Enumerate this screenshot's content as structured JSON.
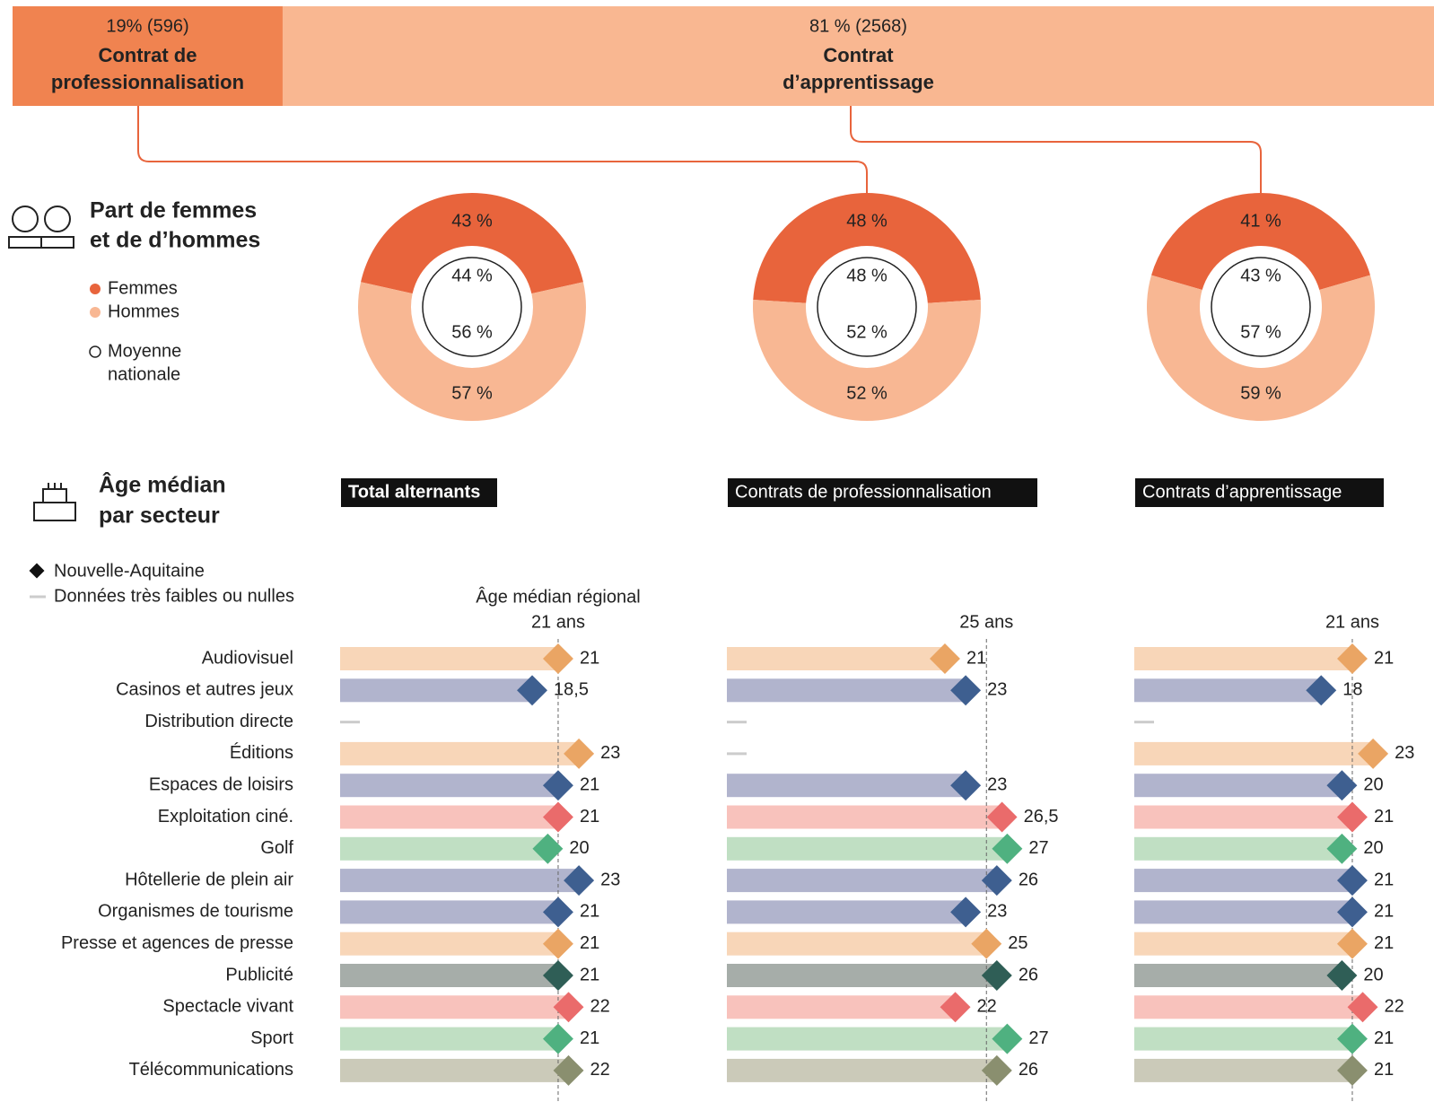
{
  "header": {
    "segments": [
      {
        "share": 19,
        "share_label": "19% (596)",
        "name_lines": [
          "Contrat de",
          "professionnalisation"
        ]
      },
      {
        "share": 81,
        "share_label": "81 % (2568)",
        "name_lines": [
          "Contrat",
          "d’apprentissage"
        ]
      }
    ]
  },
  "gender": {
    "title_lines": [
      "Part de femmes",
      "et de d’hommes"
    ],
    "legend": {
      "women": "Femmes",
      "men": "Hommes",
      "national_lines": [
        "Moyenne",
        "nationale"
      ]
    },
    "colors": {
      "women": "#e8643c",
      "men": "#f8b793"
    },
    "donuts": [
      {
        "values": [
          43,
          57
        ],
        "value_labels": [
          "43 %",
          "57 %"
        ],
        "national": [
          44,
          56
        ],
        "national_labels": [
          "44 %",
          "56 %"
        ]
      },
      {
        "values": [
          48,
          52
        ],
        "value_labels": [
          "48 %",
          "52 %"
        ],
        "national": [
          48,
          52
        ],
        "national_labels": [
          "48 %",
          "52 %"
        ]
      },
      {
        "values": [
          41,
          59
        ],
        "value_labels": [
          "41 %",
          "59 %"
        ],
        "national": [
          43,
          57
        ],
        "national_labels": [
          "43 %",
          "57 %"
        ]
      }
    ]
  },
  "age": {
    "title_lines": [
      "Âge médian",
      "par secteur"
    ],
    "legend": {
      "region": "Nouvelle-Aquitaine",
      "none": "Données très faibles ou nulles"
    },
    "categories": [
      "Audiovisuel",
      "Casinos et autres jeux",
      "Distribution directe",
      "Éditions",
      "Espaces de loisirs",
      "Exploitation ciné.",
      "Golf",
      "Hôtellerie de plein air",
      "Organismes de tourisme",
      "Presse et agences de presse",
      "Publicité",
      "Spectacle vivant",
      "Sport",
      "Télécommunications"
    ],
    "colors": [
      {
        "bar": "#f8d6b8",
        "mark": "#eaa564"
      },
      {
        "bar": "#b1b4cd",
        "mark": "#3e5f90"
      },
      {
        "bar": "#cccccc",
        "mark": "#999999"
      },
      {
        "bar": "#f8d6b8",
        "mark": "#eaa564"
      },
      {
        "bar": "#b1b4cd",
        "mark": "#3e5f90"
      },
      {
        "bar": "#f8c2bc",
        "mark": "#ea6b6b"
      },
      {
        "bar": "#c0dfc3",
        "mark": "#4fb180"
      },
      {
        "bar": "#b1b4cd",
        "mark": "#3e5f90"
      },
      {
        "bar": "#b1b4cd",
        "mark": "#3e5f90"
      },
      {
        "bar": "#f8d6b8",
        "mark": "#eaa564"
      },
      {
        "bar": "#a6ada9",
        "mark": "#2f5e56"
      },
      {
        "bar": "#f8c2bc",
        "mark": "#ea6b6b"
      },
      {
        "bar": "#c0dfc3",
        "mark": "#4fb180"
      },
      {
        "bar": "#cbcab9",
        "mark": "#8a8f6f"
      }
    ],
    "panels": [
      {
        "title": "Total alternants",
        "reference_caption": "Âge médian régional",
        "reference": 21,
        "reference_label": "21 ans",
        "values": [
          21,
          18.5,
          null,
          23,
          21,
          21,
          20,
          23,
          21,
          21,
          21,
          22,
          21,
          22
        ],
        "value_labels": [
          "21",
          "18,5",
          null,
          "23",
          "21",
          "21",
          "20",
          "23",
          "21",
          "21",
          "21",
          "22",
          "21",
          "22"
        ]
      },
      {
        "title": "Contrats de professionnalisation",
        "reference": 25,
        "reference_label": "25 ans",
        "values": [
          21,
          23,
          null,
          null,
          23,
          26.5,
          27,
          26,
          23,
          25,
          26,
          22,
          27,
          26
        ],
        "value_labels": [
          "21",
          "23",
          null,
          null,
          "23",
          "26,5",
          "27",
          "26",
          "23",
          "25",
          "26",
          "22",
          "27",
          "26"
        ]
      },
      {
        "title": "Contrats d’apprentissage",
        "reference": 21,
        "reference_label": "21 ans",
        "values": [
          21,
          18,
          null,
          23,
          20,
          21,
          20,
          21,
          21,
          21,
          20,
          22,
          21,
          21
        ],
        "value_labels": [
          "21",
          "18",
          null,
          "23",
          "20",
          "21",
          "20",
          "21",
          "21",
          "21",
          "20",
          "22",
          "21",
          "21"
        ]
      }
    ]
  }
}
